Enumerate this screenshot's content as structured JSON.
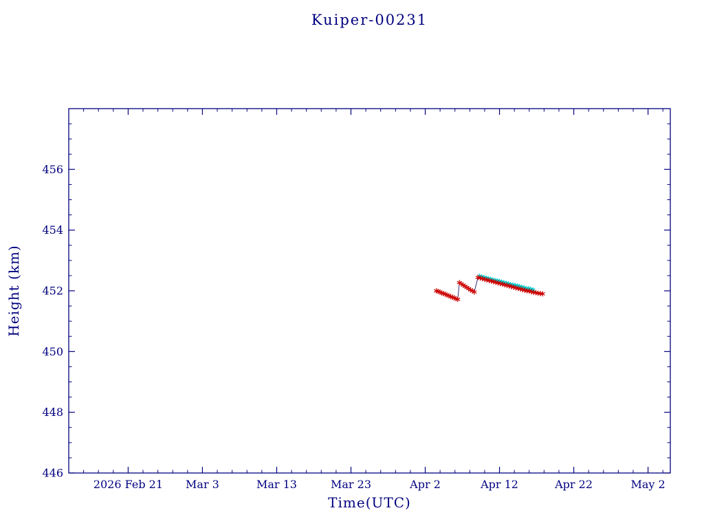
{
  "page": {
    "background_color": "#ffffff"
  },
  "chart_data": {
    "type": "scatter",
    "title": "Kuiper-00231",
    "xlabel": "Time(UTC)",
    "ylabel": "Height (km)",
    "axis_color": "#000080",
    "grid": false,
    "legend": "none",
    "xlim_days": [
      -8,
      73
    ],
    "ylim": [
      446,
      458
    ],
    "yticks": [
      446,
      448,
      450,
      452,
      454,
      456
    ],
    "y_minor_step": 0.5,
    "x_minor_step": 2,
    "xticks": [
      {
        "day": 0,
        "label": "2026 Feb 21"
      },
      {
        "day": 10,
        "label": "Mar  3"
      },
      {
        "day": 20,
        "label": "Mar 13"
      },
      {
        "day": 30,
        "label": "Mar 23"
      },
      {
        "day": 40,
        "label": "Apr  2"
      },
      {
        "day": 50,
        "label": "Apr 12"
      },
      {
        "day": 60,
        "label": "Apr 22"
      },
      {
        "day": 70,
        "label": "May  2"
      }
    ],
    "x_units": "days since 2026 Feb 21",
    "series": [
      {
        "name": "predicted-height",
        "marker": "asterisk",
        "color": "#00CCCC",
        "connect": false,
        "points": [
          [
            47.3,
            452.48
          ],
          [
            47.6,
            452.46
          ],
          [
            47.9,
            452.44
          ],
          [
            48.2,
            452.42
          ],
          [
            48.5,
            452.4
          ],
          [
            48.8,
            452.38
          ],
          [
            49.1,
            452.36
          ],
          [
            49.4,
            452.34
          ],
          [
            49.7,
            452.33
          ],
          [
            50.0,
            452.31
          ],
          [
            50.3,
            452.29
          ],
          [
            50.6,
            452.27
          ],
          [
            50.9,
            452.25
          ],
          [
            51.2,
            452.23
          ],
          [
            51.5,
            452.21
          ],
          [
            51.8,
            452.19
          ],
          [
            52.1,
            452.18
          ],
          [
            52.4,
            452.16
          ],
          [
            52.7,
            452.14
          ],
          [
            53.0,
            452.12
          ],
          [
            53.3,
            452.1
          ],
          [
            53.6,
            452.08
          ],
          [
            53.9,
            452.07
          ],
          [
            54.2,
            452.05
          ],
          [
            54.5,
            452.03
          ]
        ]
      },
      {
        "name": "measured-height",
        "marker": "asterisk",
        "color": "#CC0000",
        "connect": true,
        "line_color": "#1a1a6e",
        "points": [
          [
            41.5,
            452.0
          ],
          [
            41.74,
            451.98
          ],
          [
            41.98,
            451.96
          ],
          [
            42.22,
            451.93
          ],
          [
            42.46,
            451.91
          ],
          [
            42.7,
            451.89
          ],
          [
            42.94,
            451.86
          ],
          [
            43.18,
            451.84
          ],
          [
            43.42,
            451.81
          ],
          [
            43.66,
            451.79
          ],
          [
            43.9,
            451.77
          ],
          [
            44.14,
            451.74
          ],
          [
            44.38,
            451.72
          ],
          [
            44.6,
            452.27
          ],
          [
            44.85,
            452.23
          ],
          [
            45.1,
            452.19
          ],
          [
            45.35,
            452.15
          ],
          [
            45.6,
            452.11
          ],
          [
            45.85,
            452.07
          ],
          [
            46.1,
            452.03
          ],
          [
            46.35,
            452.0
          ],
          [
            46.6,
            451.96
          ],
          [
            47.1,
            452.44
          ],
          [
            47.4,
            452.42
          ],
          [
            47.7,
            452.4
          ],
          [
            48.0,
            452.38
          ],
          [
            48.3,
            452.36
          ],
          [
            48.6,
            452.34
          ],
          [
            48.9,
            452.32
          ],
          [
            49.2,
            452.3
          ],
          [
            49.5,
            452.28
          ],
          [
            49.8,
            452.26
          ],
          [
            50.1,
            452.24
          ],
          [
            50.4,
            452.22
          ],
          [
            50.7,
            452.2
          ],
          [
            51.0,
            452.18
          ],
          [
            51.3,
            452.16
          ],
          [
            51.6,
            452.14
          ],
          [
            51.9,
            452.12
          ],
          [
            52.2,
            452.1
          ],
          [
            52.5,
            452.08
          ],
          [
            52.8,
            452.06
          ],
          [
            53.1,
            452.04
          ],
          [
            53.4,
            452.02
          ],
          [
            53.7,
            452.0
          ],
          [
            54.0,
            451.99
          ],
          [
            54.3,
            451.97
          ],
          [
            54.6,
            451.95
          ],
          [
            54.9,
            451.94
          ],
          [
            55.2,
            451.92
          ],
          [
            55.5,
            451.91
          ],
          [
            55.8,
            451.9
          ]
        ]
      }
    ]
  }
}
